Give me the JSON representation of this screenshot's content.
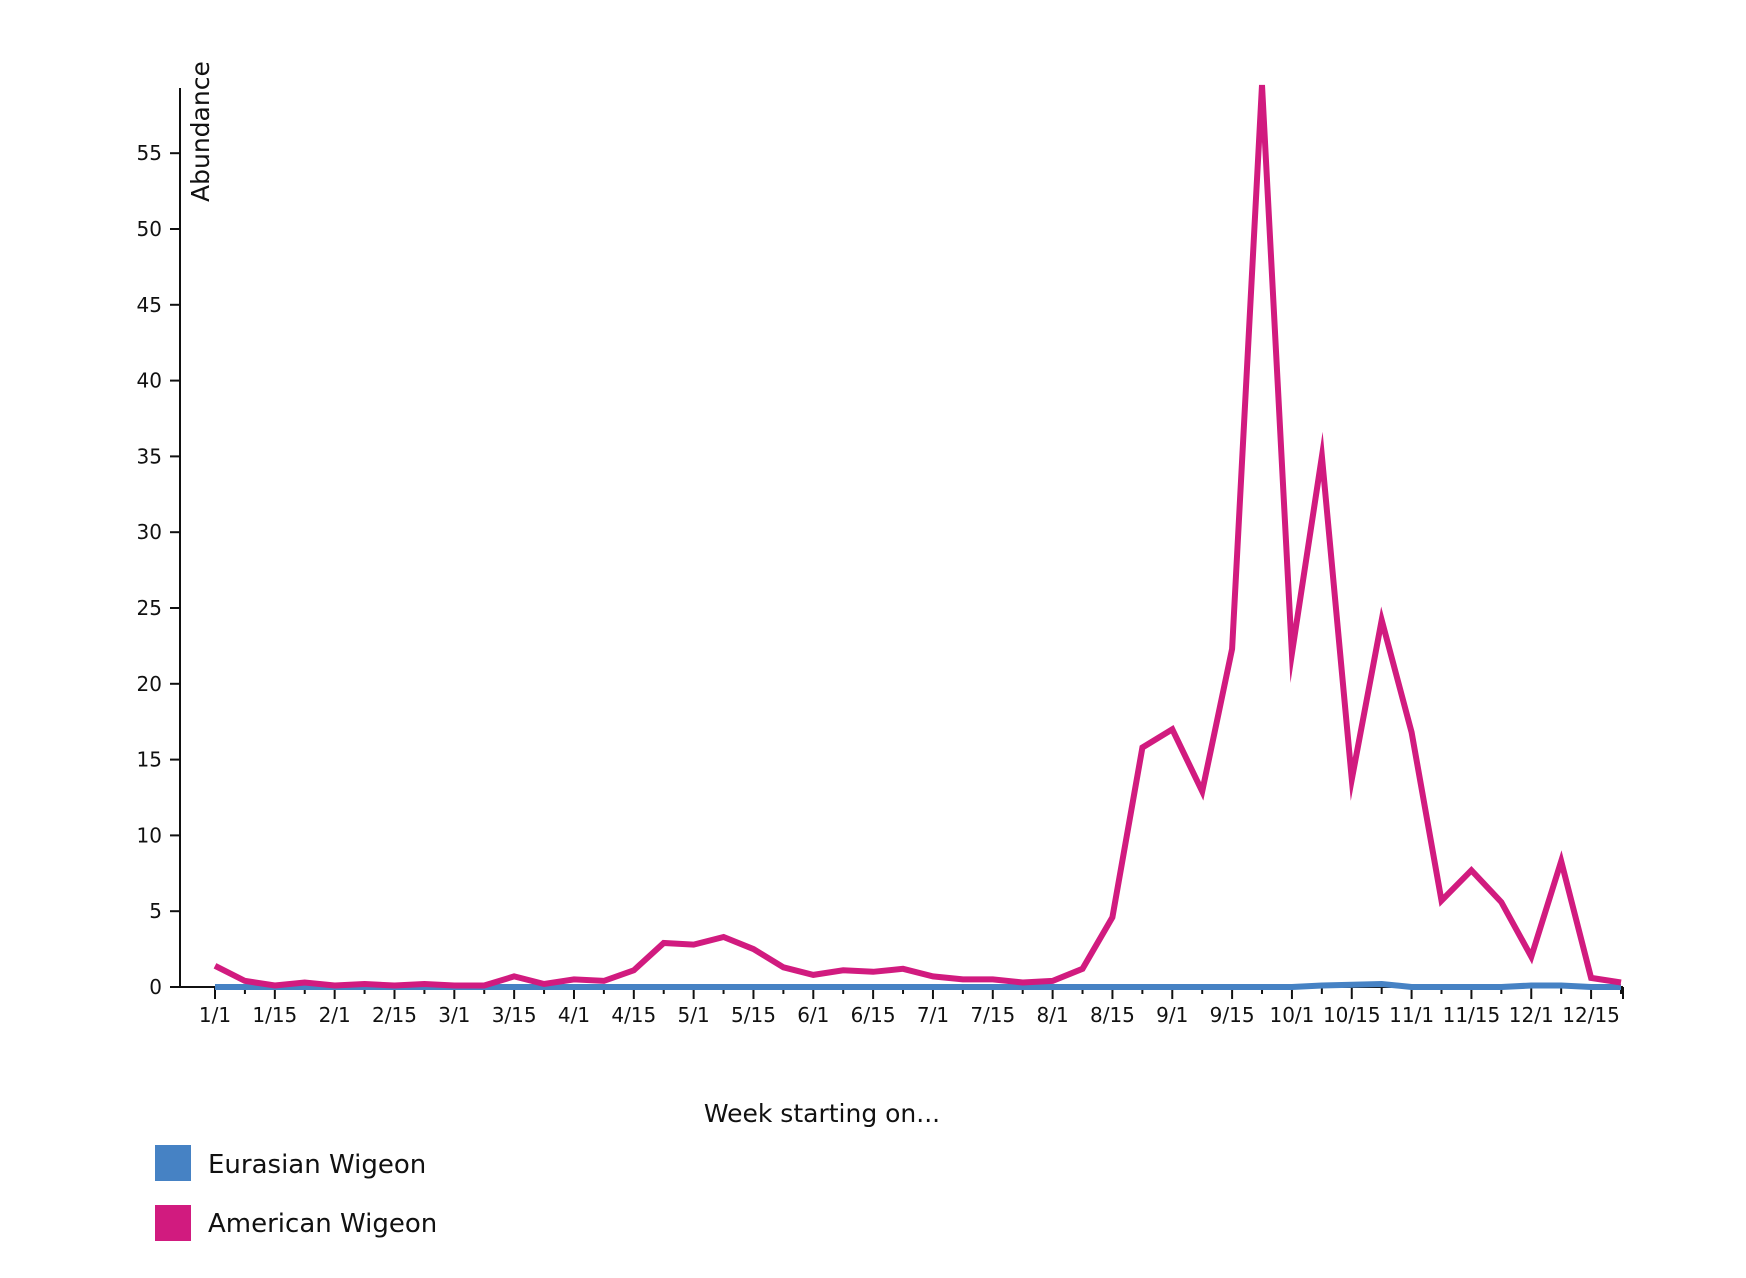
{
  "chart_data": {
    "type": "line",
    "xlabel": "Week starting on...",
    "ylabel": "Abundance",
    "ylim": [
      0,
      59.3
    ],
    "yticks": [
      0,
      5,
      10,
      15,
      20,
      25,
      30,
      35,
      40,
      45,
      50,
      55
    ],
    "x_tick_labels": [
      "1/1",
      "1/15",
      "2/1",
      "2/15",
      "3/1",
      "3/15",
      "4/1",
      "4/15",
      "5/1",
      "5/15",
      "6/1",
      "6/15",
      "7/1",
      "7/15",
      "8/1",
      "8/15",
      "9/1",
      "9/15",
      "10/1",
      "10/15",
      "11/1",
      "11/15",
      "12/1",
      "12/15"
    ],
    "weeks_per_year": 48,
    "grid": false,
    "legend_position": "bottom-left",
    "series": [
      {
        "name": "Eurasian Wigeon",
        "color": "#4682c4",
        "values": [
          0,
          0,
          0,
          0,
          0,
          0,
          0,
          0,
          0,
          0,
          0,
          0,
          0,
          0,
          0,
          0,
          0,
          0,
          0,
          0,
          0,
          0,
          0,
          0,
          0,
          0,
          0,
          0,
          0,
          0,
          0,
          0,
          0,
          0,
          0,
          0,
          0,
          0.1,
          0.15,
          0.2,
          0,
          0,
          0,
          0,
          0.1,
          0.1,
          0,
          0
        ]
      },
      {
        "name": "American Wigeon",
        "color": "#d11b7f",
        "values": [
          1.4,
          0.4,
          0.1,
          0.3,
          0.1,
          0.2,
          0.1,
          0.2,
          0.1,
          0.1,
          0.7,
          0.2,
          0.5,
          0.4,
          1.1,
          2.9,
          2.8,
          3.3,
          2.5,
          1.3,
          0.8,
          1.1,
          1.0,
          1.2,
          0.7,
          0.5,
          0.5,
          0.3,
          0.4,
          1.2,
          4.6,
          15.8,
          17.0,
          12.9,
          22.3,
          59.5,
          22.0,
          35.0,
          13.7,
          24.2,
          16.8,
          5.7,
          7.7,
          5.6,
          2.0,
          8.3,
          0.6,
          0.3
        ]
      }
    ]
  }
}
